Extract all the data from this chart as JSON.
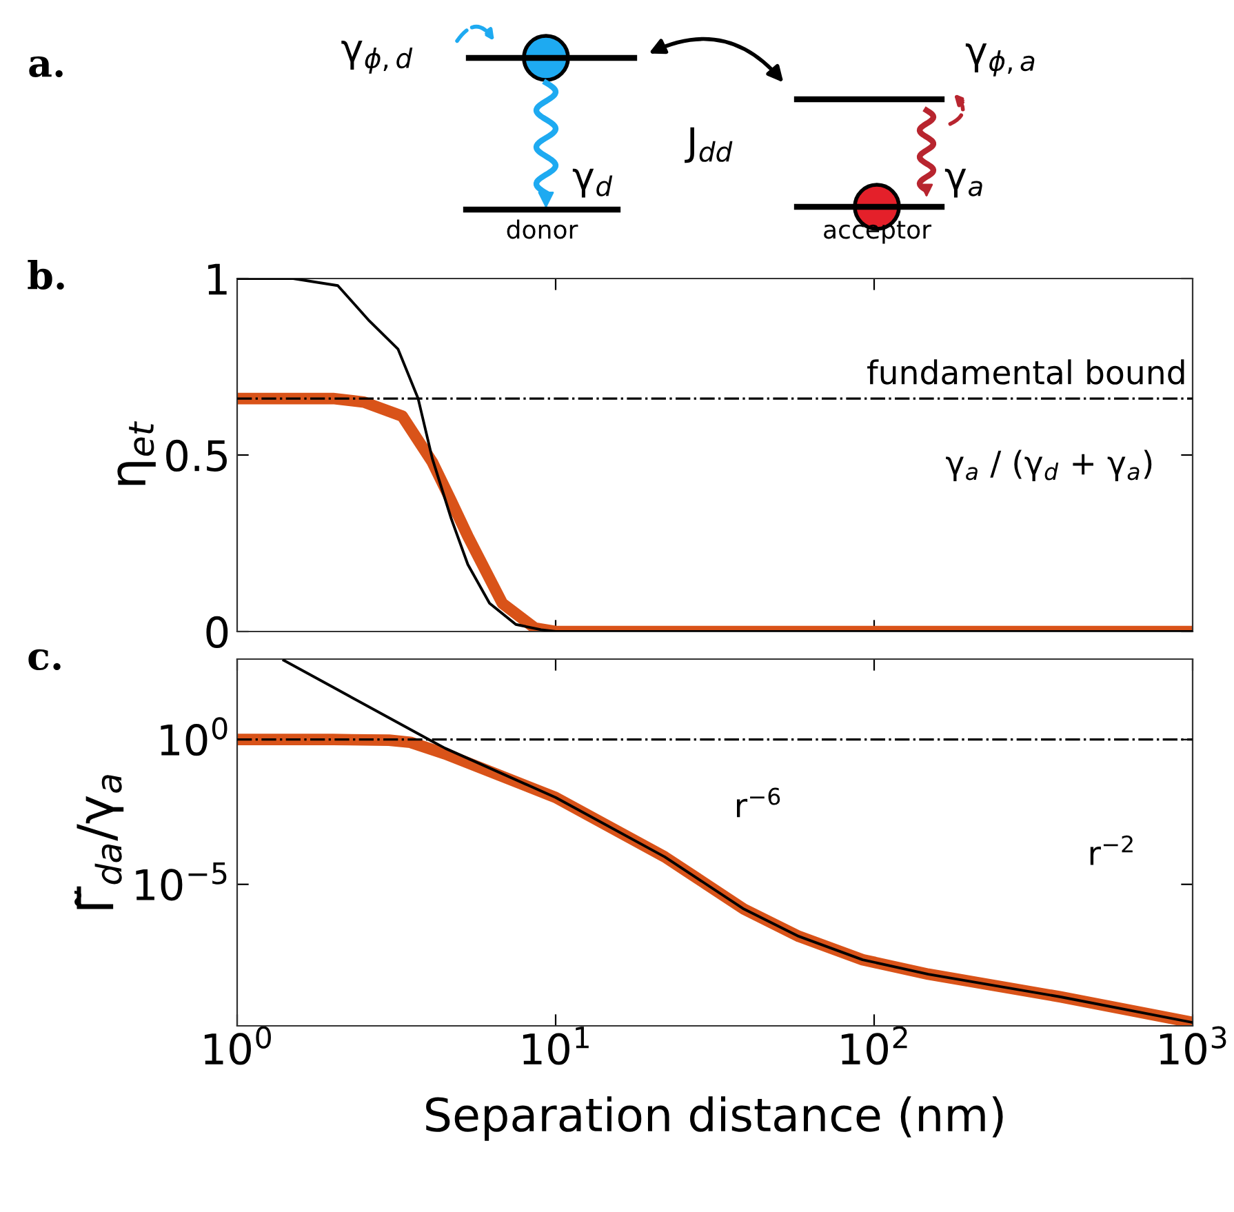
{
  "chart_data": [
    {
      "type": "other",
      "title": "a.",
      "annotations": [
        "γ$_{ϕ,d}$",
        "J$_{dd}$",
        "γ$_{d}$",
        "donor",
        "γ$_{ϕ,a}$",
        "γ$_{a}$",
        "acceptor"
      ]
    },
    {
      "type": "line",
      "title": "b.",
      "ylabel": "η$_{et}$",
      "xlim": [
        1,
        1000
      ],
      "ylim": [
        0,
        1
      ],
      "yticks": [
        0,
        0.5,
        1
      ],
      "tick_labels": "y",
      "log": "x",
      "series": [
        {
          "color": "#000000",
          "x": [
            1,
            1.5,
            2.07,
            2.6,
            3.2,
            3.7,
            4.1,
            4.7,
            5.3,
            6.2,
            7.5,
            9,
            10,
            30,
            100,
            1000
          ],
          "values": [
            1,
            1,
            0.98,
            0.88,
            0.8,
            0.66,
            0.49,
            0.32,
            0.19,
            0.08,
            0.02,
            0.005,
            0,
            0,
            0,
            0
          ]
        },
        {
          "color": "#d95319",
          "x": [
            1,
            2,
            2.5,
            3.3,
            4.1,
            4.7,
            5.3,
            6.8,
            8.6,
            10,
            30,
            100,
            1000
          ],
          "values": [
            0.66,
            0.66,
            0.65,
            0.61,
            0.48,
            0.37,
            0.27,
            0.08,
            0.01,
            0,
            0,
            0,
            0
          ]
        }
      ],
      "ref_lines": [
        {
          "axis": "y",
          "value": 0.66,
          "label": "fundamental bound",
          "color": "#000000"
        }
      ],
      "annotations": [
        "γ$_{a}$ / (γ$_{d}$ + γ$_{a}$)"
      ]
    },
    {
      "type": "line",
      "title": "c.",
      "ylabel": "Γ̃$_{da}$/γ$_{a}$",
      "xlabel": "Separation distance (nm)",
      "xlim": [
        1,
        1000
      ],
      "ylim": [
        1.3e-10,
        600
      ],
      "log": "xy",
      "xticks": [
        {
          "value": 1,
          "label": "10$^{0}$"
        },
        {
          "value": 10,
          "label": "10$^{1}$"
        },
        {
          "value": 100,
          "label": "10$^{2}$"
        },
        {
          "value": 1000,
          "label": "10$^{3}$"
        }
      ],
      "yticks": [
        {
          "value": 1e-05,
          "label": "10$^{−5}$"
        },
        {
          "value": 1,
          "label": "10$^{0}$"
        }
      ],
      "series": [
        {
          "color": "#d95319",
          "x": [
            1,
            2,
            3,
            3.5,
            4.5,
            10,
            22,
            39,
            58,
            92,
            148,
            385,
            1000
          ],
          "values": [
            1,
            1,
            0.95,
            0.8,
            0.32,
            0.01,
            8.9e-05,
            1.4e-06,
            1.6e-07,
            2.5e-08,
            7.9e-09,
            1.3e-09,
            1.7e-10
          ]
        },
        {
          "color": "#000000",
          "x": [
            1.4,
            2,
            3,
            4,
            4.5,
            10,
            22,
            39,
            58,
            92,
            148,
            385,
            1000
          ],
          "values": [
            544,
            64,
            5.6,
            1,
            0.5,
            0.01,
            8.9e-05,
            1.4e-06,
            1.6e-07,
            2.5e-08,
            7.9e-09,
            1.3e-09,
            1.7e-10
          ]
        }
      ],
      "ref_lines": [
        {
          "axis": "y",
          "value": 1,
          "color": "#000000"
        }
      ],
      "annotations": [
        "r$^{−6}$",
        "r$^{−2}$"
      ]
    }
  ]
}
